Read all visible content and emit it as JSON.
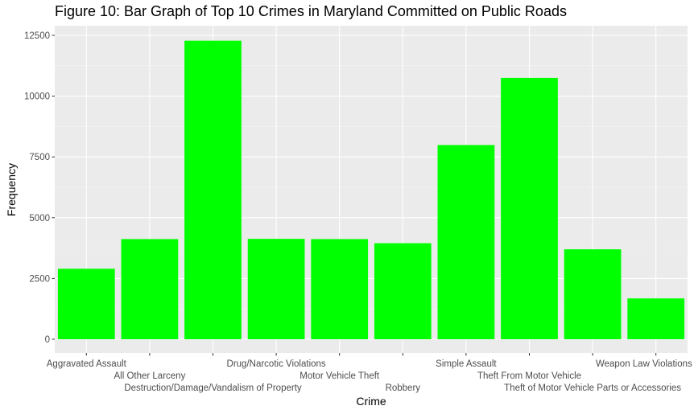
{
  "colors": {
    "panel_background": "#ebebeb",
    "grid_major": "#ffffff",
    "grid_minor": "#f5f5f5",
    "bar_fill": "#00ff00",
    "tick_text": "#4d4d4d",
    "tick_mark": "#333333"
  },
  "chart_data": {
    "type": "bar",
    "title": "Figure 10: Bar Graph of Top 10 Crimes in Maryland Committed on Public Roads",
    "xlabel": "Crime",
    "ylabel": "Frequency",
    "categories": [
      "Aggravated Assault",
      "All Other Larceny",
      "Destruction/Damage/Vandalism of Property",
      "Drug/Narcotic Violations",
      "Motor Vehicle Theft",
      "Robbery",
      "Simple Assault",
      "Theft From Motor Vehicle",
      "Theft of Motor Vehicle Parts or Accessories",
      "Weapon Law Violations"
    ],
    "values": [
      2900,
      4120,
      12280,
      4130,
      4120,
      3950,
      7990,
      10750,
      3700,
      1680
    ],
    "ylim": [
      0,
      12800
    ],
    "yticks": [
      0,
      2500,
      5000,
      7500,
      10000,
      12500
    ],
    "ytick_labels": [
      "0",
      "2500",
      "5000",
      "7500",
      "10000",
      "12500"
    ],
    "grid": true,
    "legend": "none"
  }
}
